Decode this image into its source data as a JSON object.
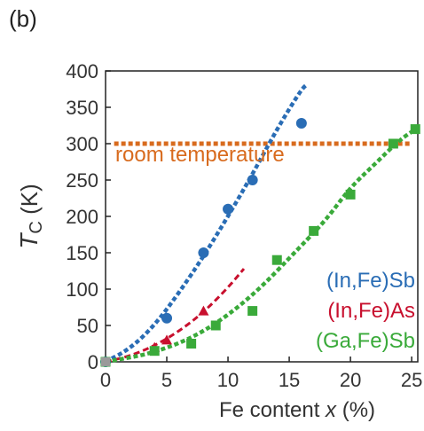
{
  "panel_label": "(b)",
  "chart_data": {
    "type": "scatter",
    "xlabel_main": "Fe content ",
    "xlabel_var": "x",
    "xlabel_unit": " (%)",
    "ylabel_main": "T",
    "ylabel_sub": "C",
    "ylabel_unit": " (K)",
    "xlim": [
      0,
      25.5
    ],
    "ylim": [
      0,
      400
    ],
    "xticks": [
      0,
      5,
      10,
      15,
      20,
      25
    ],
    "yticks": [
      0,
      50,
      100,
      150,
      200,
      250,
      300,
      350,
      400
    ],
    "reference_line": {
      "label": "room temperature",
      "y": 300,
      "x_range": [
        0.7,
        25
      ],
      "color": "#d86b1e"
    },
    "series": [
      {
        "name": "(In,Fe)Sb",
        "color": "#2a6db5",
        "marker": "circle",
        "points": [
          [
            0,
            0
          ],
          [
            5,
            60
          ],
          [
            8,
            150
          ],
          [
            10,
            210
          ],
          [
            12,
            250
          ],
          [
            16,
            328
          ]
        ],
        "fit": [
          [
            0,
            0
          ],
          [
            2,
            18
          ],
          [
            4,
            50
          ],
          [
            6,
            95
          ],
          [
            8,
            145
          ],
          [
            10,
            200
          ],
          [
            12,
            258
          ],
          [
            14,
            320
          ],
          [
            16,
            375
          ],
          [
            16.5,
            382
          ]
        ]
      },
      {
        "name": "(In,Fe)As",
        "color": "#c8102e",
        "marker": "triangle",
        "points": [
          [
            4,
            20
          ],
          [
            5,
            30
          ],
          [
            8,
            70
          ]
        ],
        "fit": [
          [
            0,
            0
          ],
          [
            2,
            8
          ],
          [
            4,
            22
          ],
          [
            6,
            42
          ],
          [
            8,
            68
          ],
          [
            10,
            102
          ],
          [
            11.3,
            128
          ]
        ]
      },
      {
        "name": "(Ga,Fe)Sb",
        "color": "#3aaa3a",
        "marker": "square",
        "points": [
          [
            0,
            0
          ],
          [
            4,
            15
          ],
          [
            7,
            25
          ],
          [
            9,
            50
          ],
          [
            12,
            70
          ],
          [
            14,
            140
          ],
          [
            17,
            180
          ],
          [
            20,
            230
          ],
          [
            23.5,
            300
          ],
          [
            25.3,
            320
          ]
        ],
        "fit": [
          [
            0,
            0
          ],
          [
            4,
            12
          ],
          [
            8,
            40
          ],
          [
            12,
            90
          ],
          [
            16,
            160
          ],
          [
            18,
            195
          ],
          [
            20,
            240
          ],
          [
            22,
            272
          ],
          [
            24,
            305
          ],
          [
            25.5,
            322
          ]
        ]
      }
    ]
  }
}
